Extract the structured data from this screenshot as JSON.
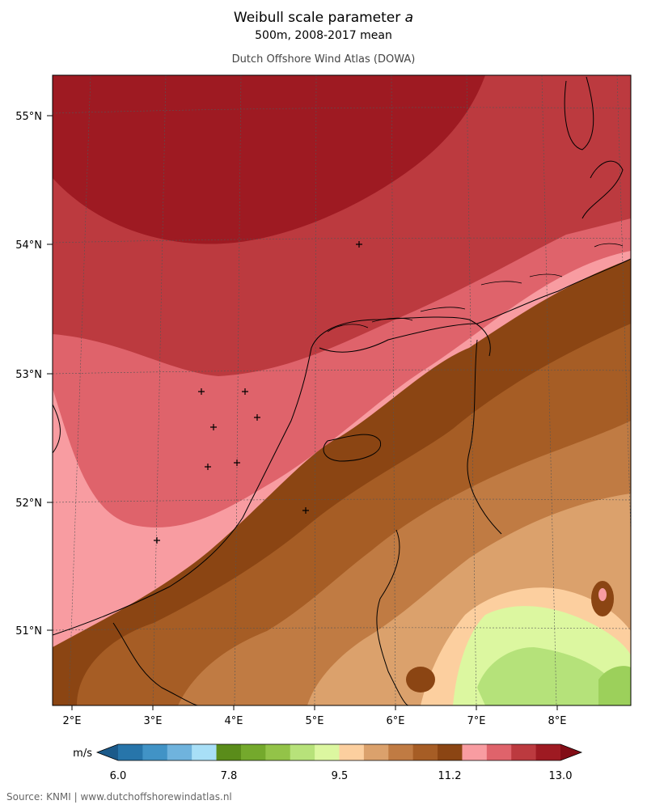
{
  "header": {
    "title_prefix": "Weibull scale parameter ",
    "title_symbol": "a",
    "subtitle": "500m, 2008-2017 mean",
    "source_line": "Dutch Offshore Wind Atlas (DOWA)"
  },
  "map": {
    "lat_labels": [
      "55°N",
      "54°N",
      "53°N",
      "52°N",
      "51°N"
    ],
    "lon_labels": [
      "2°E",
      "3°E",
      "4°E",
      "5°E",
      "6°E",
      "7°E",
      "8°E"
    ],
    "bands": [
      {
        "name": "11.8-12.6",
        "color": "#bc3a3f"
      },
      {
        "name": "12.6-13.0",
        "color": "#9e1a22"
      },
      {
        "name": "11.6-12.0",
        "color": "#df636b"
      },
      {
        "name": "11.2-11.6",
        "color": "#f89ca1"
      },
      {
        "name": "10.8-11.2",
        "color": "#8b4513"
      },
      {
        "name": "10.4-10.8",
        "color": "#a65d25"
      },
      {
        "name": "10.0-10.4",
        "color": "#c07b43"
      },
      {
        "name": "9.6-10.0",
        "color": "#dba16c"
      },
      {
        "name": "9.2-9.6",
        "color": "#fccf9f"
      },
      {
        "name": "8.8-9.2",
        "color": "#dcf7a0"
      },
      {
        "name": "8.4-8.8",
        "color": "#b5e27a"
      },
      {
        "name": "8.0-8.4",
        "color": "#9cd05b"
      }
    ],
    "marker_count": 9
  },
  "colorbar": {
    "unit": "m/s",
    "tick_labels": [
      "6.0",
      "7.8",
      "9.5",
      "11.2",
      "13.0"
    ],
    "colors": [
      "#1b5a8a",
      "#2775aa",
      "#4193c6",
      "#6fb3dd",
      "#a8dff7",
      "#5a8c1a",
      "#74a92c",
      "#93c348",
      "#b7e27a",
      "#dcf7a0",
      "#fccf9f",
      "#dba16c",
      "#c07b43",
      "#a65d25",
      "#8b4513",
      "#f89ca1",
      "#df636b",
      "#bc3a3f",
      "#9e1a22",
      "#820d16"
    ]
  },
  "footer": {
    "source": "Source: KNMI | www.dutchoffshorewindatlas.nl"
  }
}
